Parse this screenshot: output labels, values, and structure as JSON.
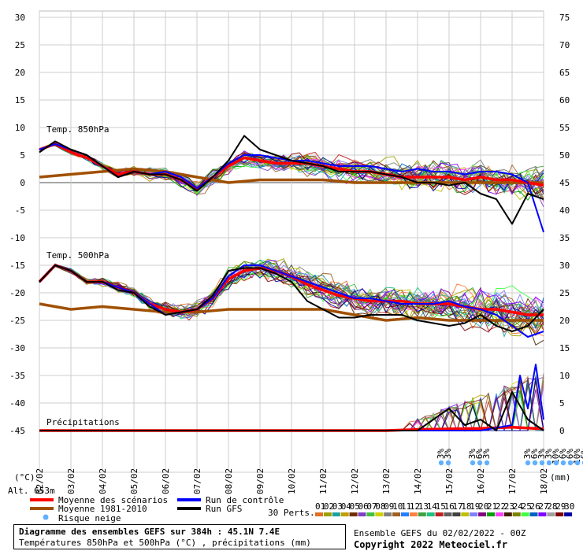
{
  "chart_data": {
    "type": "line",
    "title": "Diagramme des ensembles GEFS sur 384h : 45.1N 7.4E",
    "subtitle": "Températures 850hPa et 500hPa (°C) , précipitations (mm)",
    "run_label": "Ensemble GEFS du 02/02/2022 - 00Z",
    "copyright": "Copyright 2022 Meteociel.fr",
    "altitude": "Alt. 653m",
    "left_unit": "(°C)",
    "right_unit": "(mm)",
    "left_ticks": [
      "30",
      "25",
      "20",
      "15",
      "10",
      "5",
      "0",
      "-5",
      "-10",
      "-15",
      "-20",
      "-25",
      "-30",
      "-35",
      "-40",
      "-45"
    ],
    "right_ticks": [
      "75",
      "70",
      "65",
      "60",
      "55",
      "50",
      "45",
      "40",
      "35",
      "30",
      "25",
      "20",
      "15",
      "10",
      "5",
      "0"
    ],
    "x_labels": [
      "03/02",
      "04/02",
      "05/02",
      "06/02",
      "07/02",
      "08/02",
      "09/02",
      "10/02",
      "11/02",
      "12/02",
      "13/02",
      "14/02",
      "15/02",
      "16/02",
      "17/02",
      "18/02"
    ],
    "x_start_label": "02/02",
    "panel_labels": {
      "t850": "Temp. 850hPa",
      "t500": "Temp. 500hPa",
      "precip": "Précipitations"
    },
    "grid": true,
    "ylim": [
      -45,
      30
    ],
    "y2lim": [
      0,
      75
    ],
    "x_range_days": [
      0,
      16
    ],
    "series": [
      {
        "name": "Moyenne des scénarios",
        "color": "#ff0000",
        "panel": "t850",
        "x": [
          0,
          0.5,
          1,
          1.5,
          2,
          2.5,
          3,
          3.5,
          4,
          4.5,
          5,
          5.5,
          6,
          6.5,
          7,
          7.5,
          8,
          8.5,
          9,
          9.5,
          10,
          10.5,
          11,
          11.5,
          12,
          12.5,
          13,
          13.5,
          14,
          14.5,
          15,
          15.5,
          16
        ],
        "values": [
          6,
          7,
          5.5,
          4.5,
          3,
          1.5,
          2,
          1.5,
          1.5,
          0.5,
          -1,
          1,
          3,
          4.5,
          4,
          3.5,
          3.5,
          3.5,
          3,
          2.5,
          2,
          2,
          1.5,
          1,
          1,
          1,
          1,
          0.5,
          1,
          0.5,
          0.5,
          0,
          -0.5
        ]
      },
      {
        "name": "Moyenne 1981-2010",
        "color": "#a05000",
        "panel": "t850",
        "x": [
          0,
          1,
          2,
          3,
          4,
          5,
          6,
          7,
          8,
          9,
          10,
          11,
          12,
          13,
          14,
          15,
          16
        ],
        "values": [
          1,
          1.5,
          2,
          2.5,
          2,
          1,
          0,
          0.5,
          0.5,
          0.5,
          0,
          0,
          0,
          0,
          0,
          0,
          0
        ]
      },
      {
        "name": "Run de contrôle",
        "color": "#0000ff",
        "panel": "t850",
        "x": [
          0,
          0.5,
          1,
          1.5,
          2,
          2.5,
          3,
          3.5,
          4,
          4.5,
          5,
          5.5,
          6,
          6.5,
          7,
          7.5,
          8,
          8.5,
          9,
          9.5,
          10,
          10.5,
          11,
          11.5,
          12,
          12.5,
          13,
          13.5,
          14,
          14.5,
          15,
          15.5,
          16
        ],
        "values": [
          6,
          7,
          6,
          5,
          3,
          1,
          2,
          1.5,
          2,
          1,
          -1,
          1,
          3.5,
          5,
          5,
          4.5,
          4,
          4,
          3.5,
          3,
          3,
          3,
          2.5,
          2,
          2.5,
          2,
          2,
          1.5,
          2,
          2,
          1.5,
          0,
          -9
        ]
      },
      {
        "name": "Run GFS",
        "color": "#000000",
        "panel": "t850",
        "x": [
          0,
          0.5,
          1,
          1.5,
          2,
          2.5,
          3,
          3.5,
          4,
          4.5,
          5,
          5.5,
          6,
          6.5,
          7,
          7.5,
          8,
          8.5,
          9,
          9.5,
          10,
          10.5,
          11,
          11.5,
          12,
          12.5,
          13,
          13.5,
          14,
          14.5,
          15,
          15.5,
          16
        ],
        "values": [
          5.5,
          7.5,
          6,
          5,
          3,
          1,
          2,
          1.5,
          1.5,
          0.5,
          -1.5,
          1,
          4,
          8.5,
          6,
          5,
          4,
          3.5,
          3,
          2,
          2,
          2,
          1.5,
          1,
          0,
          0,
          -0.5,
          0,
          -2,
          -3,
          -7.5,
          -2,
          -3
        ]
      },
      {
        "name": "Moyenne des scénarios",
        "color": "#ff0000",
        "panel": "t500",
        "x": [
          0,
          0.5,
          1,
          1.5,
          2,
          2.5,
          3,
          3.5,
          4,
          4.5,
          5,
          5.5,
          6,
          6.5,
          7,
          7.5,
          8,
          8.5,
          9,
          9.5,
          10,
          10.5,
          11,
          11.5,
          12,
          12.5,
          13,
          13.5,
          14,
          14.5,
          15,
          15.5,
          16
        ],
        "values": [
          -18,
          -15,
          -16,
          -18,
          -18,
          -19,
          -20,
          -22,
          -23,
          -23.5,
          -23,
          -21,
          -17.5,
          -16,
          -15.5,
          -16,
          -17,
          -18.5,
          -19.5,
          -20.5,
          -21,
          -21.5,
          -21.5,
          -21.5,
          -22,
          -22,
          -22,
          -22.5,
          -23,
          -23,
          -23.5,
          -24,
          -24
        ]
      },
      {
        "name": "Moyenne 1981-2010",
        "color": "#a05000",
        "panel": "t500",
        "x": [
          0,
          1,
          2,
          3,
          4,
          5,
          6,
          7,
          8,
          9,
          10,
          11,
          12,
          13,
          14,
          15,
          16
        ],
        "values": [
          -22,
          -23,
          -22.5,
          -23,
          -23.5,
          -23.5,
          -23,
          -23,
          -23,
          -23,
          -24,
          -25,
          -24.5,
          -25,
          -25,
          -25,
          -25
        ]
      },
      {
        "name": "Run de contrôle",
        "color": "#0000ff",
        "panel": "t500",
        "x": [
          0,
          0.5,
          1,
          1.5,
          2,
          2.5,
          3,
          3.5,
          4,
          4.5,
          5,
          5.5,
          6,
          6.5,
          7,
          7.5,
          8,
          8.5,
          9,
          9.5,
          10,
          10.5,
          11,
          11.5,
          12,
          12.5,
          13,
          13.5,
          14,
          14.5,
          15,
          15.5,
          16
        ],
        "values": [
          -18,
          -15,
          -16,
          -18,
          -18,
          -19,
          -20,
          -22,
          -24,
          -23.5,
          -23,
          -21,
          -17,
          -15,
          -15,
          -16,
          -17,
          -18,
          -19,
          -20,
          -21,
          -21,
          -21.5,
          -22,
          -22,
          -22,
          -21.5,
          -22.5,
          -23,
          -24,
          -26,
          -28,
          -27
        ]
      },
      {
        "name": "Run GFS",
        "color": "#000000",
        "panel": "t500",
        "x": [
          0,
          0.5,
          1,
          1.5,
          2,
          2.5,
          3,
          3.5,
          4,
          4.5,
          5,
          5.5,
          6,
          6.5,
          7,
          7.5,
          8,
          8.5,
          9,
          9.5,
          10,
          10.5,
          11,
          11.5,
          12,
          12.5,
          13,
          13.5,
          14,
          14.5,
          15,
          15.5,
          16
        ],
        "values": [
          -18,
          -15,
          -16,
          -18,
          -18,
          -19.5,
          -20,
          -22.5,
          -24,
          -23.5,
          -23,
          -20.5,
          -16,
          -15.5,
          -15.5,
          -16.5,
          -18,
          -21.5,
          -23,
          -24.5,
          -24.5,
          -24,
          -24,
          -24,
          -25,
          -25.5,
          -26,
          -25.5,
          -24,
          -26,
          -27,
          -26,
          -23
        ]
      },
      {
        "name": "Moyenne des scénarios",
        "color": "#ff0000",
        "panel": "precip",
        "axis": "mm",
        "x": [
          0,
          1,
          2,
          3,
          4,
          5,
          6,
          7,
          8,
          9,
          10,
          11,
          12,
          13,
          14,
          15,
          16
        ],
        "values": [
          0,
          0,
          0,
          0,
          0,
          0,
          0,
          0,
          0,
          0,
          0,
          0,
          0.2,
          0.3,
          0.4,
          0.6,
          0.3
        ]
      },
      {
        "name": "Run de contrôle",
        "color": "#0000ff",
        "panel": "precip",
        "axis": "mm",
        "x": [
          0,
          1,
          2,
          3,
          4,
          5,
          6,
          7,
          8,
          9,
          10,
          11,
          12,
          13,
          14,
          15,
          15.25,
          15.5,
          15.75,
          16
        ],
        "values": [
          0,
          0,
          0,
          0,
          0,
          0,
          0,
          0,
          0,
          0,
          0,
          0,
          0,
          0,
          0,
          1,
          10,
          4,
          12,
          2
        ]
      },
      {
        "name": "Run GFS",
        "color": "#000000",
        "panel": "precip",
        "axis": "mm",
        "x": [
          0,
          1,
          2,
          3,
          4,
          5,
          6,
          7,
          8,
          9,
          10,
          11,
          12,
          12.5,
          13,
          13.5,
          14,
          14.5,
          15,
          15.5,
          16
        ],
        "values": [
          0,
          0,
          0,
          0,
          0,
          0,
          0,
          0,
          0,
          0,
          0,
          0,
          0,
          2,
          4,
          1,
          2,
          0,
          7,
          2,
          0
        ]
      }
    ],
    "members_count_label": "30 Perts.",
    "member_ids": [
      "01",
      "02",
      "03",
      "04",
      "05",
      "06",
      "07",
      "08",
      "09",
      "10",
      "11",
      "12",
      "13",
      "14",
      "15",
      "16",
      "17",
      "18",
      "19",
      "20",
      "21",
      "22",
      "23",
      "24",
      "25",
      "26",
      "27",
      "28",
      "29",
      "30"
    ],
    "member_colors": [
      "#e07020",
      "#a0a000",
      "#20a0a0",
      "#c0a000",
      "#703000",
      "#8040c0",
      "#40c040",
      "#d0d000",
      "#808080",
      "#a06020",
      "#2080ff",
      "#ff8040",
      "#40a040",
      "#20c080",
      "#c02020",
      "#606060",
      "#404040",
      "#c0c000",
      "#8080ff",
      "#800080",
      "#00a000",
      "#ff40ff",
      "#402000",
      "#808000",
      "#40ff40",
      "#0060c0",
      "#8000ff",
      "#a0a0a0",
      "#800000",
      "#0000a0"
    ],
    "legend": [
      {
        "label": "Moyenne des scénarios",
        "color": "#ff0000"
      },
      {
        "label": "Run de contrôle",
        "color": "#0000ff"
      },
      {
        "label": "Moyenne 1981-2010",
        "color": "#a05000"
      },
      {
        "label": "Run GFS",
        "color": "#000000"
      },
      {
        "label": "Risque neige",
        "color": "#60b0ff"
      }
    ],
    "snow_risk": [
      {
        "x": 12.75,
        "pcts": [
          "3%",
          "3%"
        ]
      },
      {
        "x": 13.75,
        "pcts": [
          "3%",
          "6%",
          "3%"
        ]
      },
      {
        "x": 15.5,
        "pcts": [
          "3%",
          "6%",
          "3%",
          "3%",
          "10%",
          "6%",
          "6%",
          "10%",
          "6%",
          "3%",
          "6%",
          "3%",
          "3%",
          "3%"
        ]
      }
    ]
  }
}
